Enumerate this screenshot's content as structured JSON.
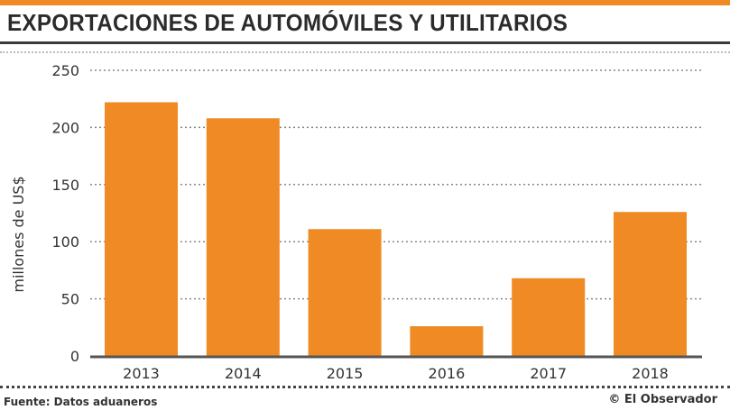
{
  "chart_data": {
    "type": "bar",
    "title": "EXPORTACIONES DE AUTOMÓVILES Y UTILITARIOS",
    "categories": [
      "2013",
      "2014",
      "2015",
      "2016",
      "2017",
      "2018"
    ],
    "values": [
      222,
      208,
      111,
      26,
      68,
      126
    ],
    "xlabel": "",
    "ylabel": "millones de US$",
    "ylim": [
      0,
      250
    ],
    "yticks": [
      0,
      50,
      100,
      150,
      200,
      250
    ],
    "grid": true,
    "bar_color": "#f08a24"
  },
  "footer": {
    "source": "Fuente: Datos aduaneros",
    "credit": "© El Observador"
  },
  "colors": {
    "accent": "#f08a24",
    "text": "#2b2b2b"
  }
}
